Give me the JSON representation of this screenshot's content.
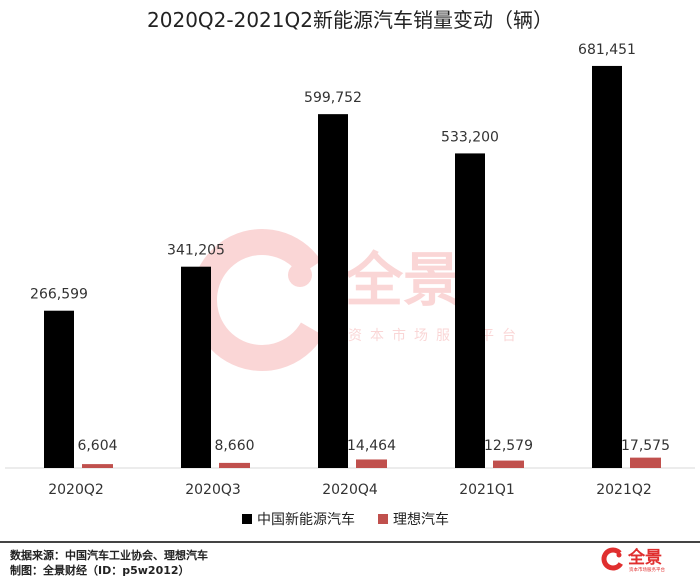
{
  "chart_data": {
    "type": "bar",
    "title": "2020Q2-2021Q2新能源汽车销量变动（辆）",
    "categories": [
      "2020Q2",
      "2020Q3",
      "2020Q4",
      "2021Q1",
      "2021Q2"
    ],
    "series": [
      {
        "name": "中国新能源汽车",
        "values": [
          266599,
          341205,
          599752,
          533200,
          681451
        ],
        "labels": [
          "266,599",
          "341,205",
          "599,752",
          "533,200",
          "681,451"
        ],
        "color": "#000000"
      },
      {
        "name": "理想汽车",
        "values": [
          6604,
          8660,
          14464,
          12579,
          17575
        ],
        "labels": [
          "6,604",
          "8,660",
          "14,464",
          "12,579",
          "17,575"
        ],
        "color": "#c0504d"
      }
    ],
    "ylim": [
      0,
      700000
    ],
    "grid": false,
    "legend_position": "bottom"
  },
  "watermark": {
    "brand": "全景",
    "tagline": "资本市场服务平台",
    "color": "#e94b4b"
  },
  "footer": {
    "source": "数据来源：中国汽车工业协会、理想汽车",
    "producer": "制图：全景财经（ID：p5w2012）",
    "logo_text": "全景",
    "logo_tagline": "资本市场服务平台"
  }
}
